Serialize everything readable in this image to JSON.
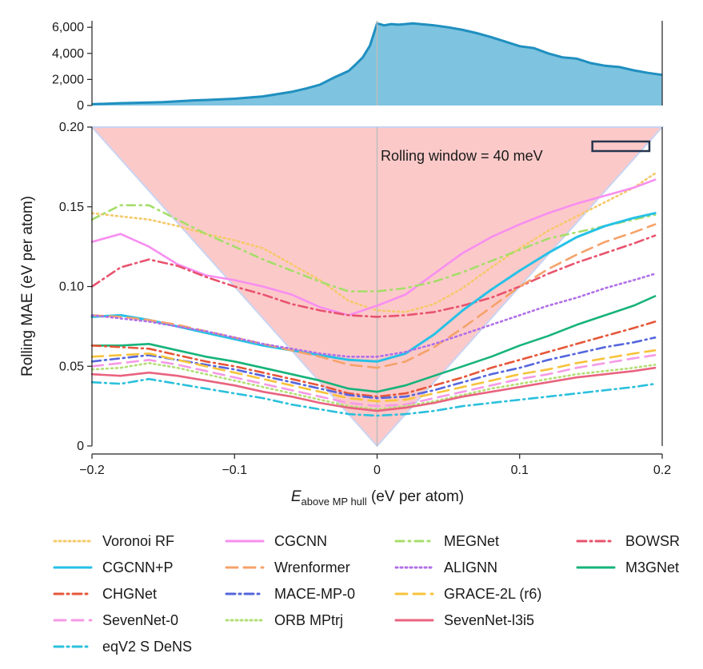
{
  "chart_data": [
    {
      "type": "area",
      "title": "",
      "xlabel": "",
      "ylabel": "",
      "xlim": [
        -0.2,
        0.2
      ],
      "ylim": [
        0,
        6500
      ],
      "yticks": [
        0,
        2000,
        4000,
        6000
      ],
      "ytick_labels": [
        "0",
        "2,000",
        "4,000",
        "6,000"
      ],
      "grid": false,
      "colors": {
        "fill": "#7ec3df",
        "line": "#1f8fc0"
      },
      "x": [
        -0.2,
        -0.18,
        -0.16,
        -0.15,
        -0.13,
        -0.1,
        -0.08,
        -0.06,
        -0.05,
        -0.04,
        -0.03,
        -0.02,
        -0.015,
        -0.01,
        -0.005,
        0.0,
        0.005,
        0.01,
        0.015,
        0.02,
        0.025,
        0.03,
        0.035,
        0.04,
        0.05,
        0.06,
        0.07,
        0.08,
        0.09,
        0.1,
        0.11,
        0.12,
        0.13,
        0.14,
        0.15,
        0.16,
        0.17,
        0.18,
        0.19,
        0.2
      ],
      "values": [
        100,
        180,
        230,
        260,
        380,
        520,
        700,
        1050,
        1300,
        1600,
        2150,
        2650,
        3150,
        3700,
        4600,
        6300,
        6150,
        6250,
        6200,
        6250,
        6300,
        6250,
        6200,
        6150,
        6000,
        5800,
        5550,
        5250,
        4900,
        4550,
        4400,
        4000,
        3700,
        3600,
        3250,
        3050,
        2950,
        2700,
        2500,
        2350
      ]
    },
    {
      "type": "line",
      "title": "",
      "xlabel": "E_above MP hull (eV per atom)",
      "xlabel_main": "E",
      "xlabel_sub": "above MP hull",
      "xlabel_unit": " (eV per atom)",
      "ylabel": "Rolling MAE (eV per atom)",
      "xlim": [
        -0.2,
        0.2
      ],
      "ylim": [
        0,
        0.2
      ],
      "xticks": [
        -0.2,
        -0.1,
        0,
        0.1,
        0.2
      ],
      "xtick_labels": [
        "−0.2",
        "−0.1",
        "0",
        "0.1",
        "0.2"
      ],
      "yticks": [
        0,
        0.05,
        0.1,
        0.15,
        0.2
      ],
      "ytick_labels": [
        "0",
        "0.05",
        "0.10",
        "0.15",
        "0.20"
      ],
      "grid": false,
      "legend_position": "bottom",
      "annotation": "Rolling window = 40 meV",
      "triangle_color": "#fcc9c9",
      "zero_line_color": "#bdbdbd",
      "x": [
        -0.2,
        -0.18,
        -0.16,
        -0.14,
        -0.12,
        -0.1,
        -0.08,
        -0.06,
        -0.04,
        -0.02,
        0.0,
        0.02,
        0.04,
        0.06,
        0.08,
        0.1,
        0.12,
        0.14,
        0.16,
        0.18,
        0.195
      ],
      "series": [
        {
          "name": "Voronoi RF",
          "color": "#f5c96a",
          "dash": "2,4",
          "width": 2.6,
          "values": [
            0.146,
            0.144,
            0.142,
            0.138,
            0.133,
            0.129,
            0.124,
            0.114,
            0.104,
            0.091,
            0.085,
            0.084,
            0.089,
            0.099,
            0.112,
            0.124,
            0.135,
            0.144,
            0.153,
            0.162,
            0.171
          ]
        },
        {
          "name": "CGCNN",
          "color": "#f78ef0",
          "dash": "",
          "width": 2.6,
          "values": [
            0.128,
            0.133,
            0.125,
            0.114,
            0.107,
            0.104,
            0.1,
            0.095,
            0.087,
            0.082,
            0.088,
            0.095,
            0.108,
            0.121,
            0.131,
            0.139,
            0.146,
            0.152,
            0.157,
            0.162,
            0.167
          ]
        },
        {
          "name": "MEGNet",
          "color": "#a6dd6a",
          "dash": "10,6,2,6",
          "width": 2.6,
          "values": [
            0.142,
            0.151,
            0.151,
            0.142,
            0.133,
            0.125,
            0.117,
            0.11,
            0.103,
            0.097,
            0.097,
            0.099,
            0.103,
            0.109,
            0.116,
            0.123,
            0.13,
            0.134,
            0.138,
            0.142,
            0.145
          ]
        },
        {
          "name": "BOWSR",
          "color": "#e8536d",
          "dash": "11,5,2,5",
          "width": 2.6,
          "values": [
            0.1,
            0.112,
            0.117,
            0.113,
            0.106,
            0.1,
            0.095,
            0.089,
            0.085,
            0.082,
            0.081,
            0.082,
            0.084,
            0.088,
            0.093,
            0.1,
            0.108,
            0.115,
            0.121,
            0.127,
            0.132
          ]
        },
        {
          "name": "CGCNN+P",
          "color": "#26c1e6",
          "dash": "",
          "width": 3.0,
          "values": [
            0.081,
            0.082,
            0.079,
            0.075,
            0.071,
            0.067,
            0.063,
            0.06,
            0.057,
            0.054,
            0.053,
            0.058,
            0.07,
            0.085,
            0.098,
            0.11,
            0.121,
            0.131,
            0.138,
            0.143,
            0.146
          ]
        },
        {
          "name": "Wrenformer",
          "color": "#f5a26a",
          "dash": "14,8",
          "width": 2.6,
          "values": [
            0.082,
            0.081,
            0.079,
            0.076,
            0.072,
            0.068,
            0.064,
            0.06,
            0.056,
            0.051,
            0.049,
            0.053,
            0.062,
            0.074,
            0.087,
            0.1,
            0.111,
            0.12,
            0.128,
            0.134,
            0.139
          ]
        },
        {
          "name": "ALIGNN",
          "color": "#b06fe8",
          "dash": "2,4",
          "width": 2.6,
          "values": [
            0.082,
            0.08,
            0.078,
            0.075,
            0.072,
            0.068,
            0.064,
            0.061,
            0.058,
            0.056,
            0.056,
            0.059,
            0.064,
            0.07,
            0.076,
            0.082,
            0.088,
            0.093,
            0.099,
            0.104,
            0.108
          ]
        },
        {
          "name": "M3GNet",
          "color": "#16b37a",
          "dash": "",
          "width": 2.6,
          "values": [
            0.063,
            0.063,
            0.064,
            0.06,
            0.056,
            0.053,
            0.049,
            0.045,
            0.041,
            0.036,
            0.034,
            0.038,
            0.044,
            0.05,
            0.056,
            0.063,
            0.069,
            0.076,
            0.082,
            0.088,
            0.094
          ]
        },
        {
          "name": "CHGNet",
          "color": "#e5573a",
          "dash": "11,5,2,5",
          "width": 2.6,
          "values": [
            0.063,
            0.062,
            0.061,
            0.057,
            0.053,
            0.05,
            0.046,
            0.042,
            0.038,
            0.033,
            0.031,
            0.033,
            0.038,
            0.043,
            0.049,
            0.054,
            0.059,
            0.064,
            0.069,
            0.074,
            0.078
          ]
        },
        {
          "name": "MACE-MP-0",
          "color": "#5566dd",
          "dash": "11,5,2,5",
          "width": 2.6,
          "values": [
            0.053,
            0.055,
            0.057,
            0.054,
            0.051,
            0.048,
            0.044,
            0.04,
            0.036,
            0.032,
            0.03,
            0.031,
            0.035,
            0.04,
            0.045,
            0.049,
            0.054,
            0.058,
            0.062,
            0.065,
            0.068
          ]
        },
        {
          "name": "GRACE-2L (r6)",
          "color": "#f7c33b",
          "dash": "14,8",
          "width": 2.6,
          "values": [
            0.056,
            0.057,
            0.058,
            0.054,
            0.05,
            0.046,
            0.042,
            0.038,
            0.034,
            0.03,
            0.028,
            0.029,
            0.033,
            0.037,
            0.041,
            0.045,
            0.048,
            0.052,
            0.055,
            0.058,
            0.06
          ]
        },
        {
          "name": "SevenNet-0",
          "color": "#f59ae6",
          "dash": "14,8",
          "width": 2.6,
          "values": [
            0.05,
            0.052,
            0.054,
            0.051,
            0.047,
            0.043,
            0.039,
            0.035,
            0.031,
            0.027,
            0.025,
            0.026,
            0.03,
            0.034,
            0.038,
            0.042,
            0.045,
            0.049,
            0.052,
            0.055,
            0.057
          ]
        },
        {
          "name": "ORB MPtrj",
          "color": "#b3df76",
          "dash": "2,4",
          "width": 2.6,
          "values": [
            0.048,
            0.049,
            0.052,
            0.049,
            0.045,
            0.041,
            0.037,
            0.033,
            0.029,
            0.025,
            0.023,
            0.025,
            0.028,
            0.032,
            0.036,
            0.039,
            0.042,
            0.045,
            0.047,
            0.049,
            0.051
          ]
        },
        {
          "name": "SevenNet-l3i5",
          "color": "#e9637f",
          "dash": "",
          "width": 2.6,
          "values": [
            0.045,
            0.044,
            0.046,
            0.044,
            0.041,
            0.038,
            0.034,
            0.031,
            0.027,
            0.024,
            0.022,
            0.024,
            0.027,
            0.031,
            0.034,
            0.037,
            0.04,
            0.043,
            0.045,
            0.047,
            0.049
          ]
        },
        {
          "name": "eqV2 S DeNS",
          "color": "#2bc0dc",
          "dash": "11,5,2,5",
          "width": 2.6,
          "values": [
            0.04,
            0.039,
            0.042,
            0.039,
            0.036,
            0.033,
            0.03,
            0.026,
            0.023,
            0.02,
            0.019,
            0.02,
            0.022,
            0.025,
            0.027,
            0.029,
            0.031,
            0.033,
            0.035,
            0.037,
            0.039
          ]
        }
      ]
    }
  ]
}
